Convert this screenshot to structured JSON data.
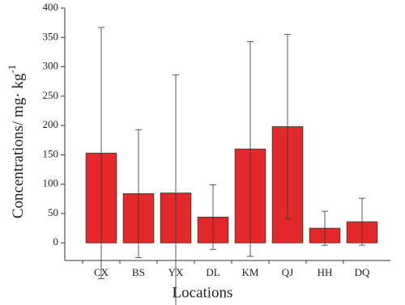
{
  "chart_data": {
    "type": "bar",
    "xlabel": "Locations",
    "ylabel": "Concentrations/ mg· kg",
    "ylabel_sup": "-1",
    "categories": [
      "CX",
      "BS",
      "YX",
      "DL",
      "KM",
      "QJ",
      "HH",
      "DQ"
    ],
    "values": [
      153,
      84,
      85,
      44,
      160,
      198,
      25,
      36
    ],
    "errors": [
      214,
      109,
      201,
      55,
      183,
      157,
      29,
      40
    ],
    "color": "#e3292b",
    "ylim": [
      -30,
      400
    ],
    "yticks": [
      0,
      50,
      100,
      150,
      200,
      250,
      300,
      350,
      400
    ],
    "grid": false
  }
}
